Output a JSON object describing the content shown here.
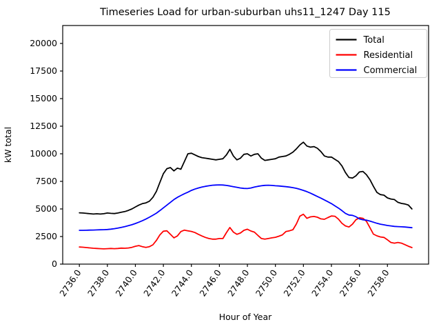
{
  "chart_data": {
    "type": "line",
    "title": "Timeseries Load for urban-suburban uhs11_1247  Day 115",
    "xlabel": "Hour of Year",
    "ylabel": "kW total",
    "x_start": 2736.0,
    "x_step": 0.25,
    "xlim": [
      2734.81,
      2760.94
    ],
    "ylim": [
      0,
      21625
    ],
    "xticks": [
      2736,
      2738,
      2740,
      2742,
      2744,
      2746,
      2748,
      2750,
      2752,
      2754,
      2756,
      2758
    ],
    "xtick_decimals": 1,
    "yticks": [
      0,
      2500,
      5000,
      7500,
      10000,
      12500,
      15000,
      17500,
      20000
    ],
    "grid": false,
    "legend_position": "upper right",
    "frame_color": "#000000",
    "legend_border_color": "#cccccc",
    "series": [
      {
        "name": "Total",
        "color": "#000000",
        "values": [
          4650,
          4630,
          4600,
          4570,
          4540,
          4560,
          4540,
          4570,
          4630,
          4600,
          4580,
          4630,
          4700,
          4760,
          4870,
          5000,
          5180,
          5350,
          5480,
          5550,
          5700,
          6050,
          6600,
          7400,
          8200,
          8650,
          8750,
          8450,
          8700,
          8600,
          9300,
          10000,
          10050,
          9900,
          9750,
          9650,
          9600,
          9550,
          9500,
          9450,
          9500,
          9550,
          9900,
          10400,
          9800,
          9450,
          9600,
          9950,
          10000,
          9800,
          9950,
          10000,
          9600,
          9400,
          9450,
          9500,
          9550,
          9700,
          9750,
          9800,
          9950,
          10150,
          10450,
          10800,
          11050,
          10700,
          10600,
          10650,
          10500,
          10200,
          9800,
          9700,
          9700,
          9500,
          9300,
          8900,
          8300,
          7850,
          7800,
          8000,
          8350,
          8400,
          8100,
          7650,
          7050,
          6500,
          6300,
          6250,
          6000,
          5900,
          5850,
          5600,
          5500,
          5450,
          5350,
          5000
        ]
      },
      {
        "name": "Residential",
        "color": "#ff0000",
        "values": [
          1550,
          1530,
          1500,
          1470,
          1440,
          1420,
          1400,
          1380,
          1400,
          1420,
          1400,
          1420,
          1450,
          1440,
          1460,
          1520,
          1620,
          1680,
          1580,
          1520,
          1580,
          1750,
          2150,
          2650,
          2980,
          3020,
          2700,
          2380,
          2550,
          2950,
          3080,
          3020,
          2960,
          2860,
          2700,
          2550,
          2420,
          2320,
          2260,
          2260,
          2320,
          2320,
          2850,
          3320,
          2900,
          2700,
          2820,
          3060,
          3160,
          3000,
          2900,
          2600,
          2320,
          2260,
          2320,
          2380,
          2430,
          2530,
          2650,
          2950,
          3020,
          3120,
          3650,
          4350,
          4520,
          4150,
          4280,
          4320,
          4250,
          4100,
          4060,
          4220,
          4360,
          4340,
          4080,
          3700,
          3460,
          3360,
          3620,
          4020,
          4200,
          4150,
          3880,
          3300,
          2720,
          2560,
          2460,
          2420,
          2200,
          1960,
          1900,
          1960,
          1900,
          1760,
          1620,
          1500
        ]
      },
      {
        "name": "Commercial",
        "color": "#0000ff",
        "values": [
          3060,
          3060,
          3070,
          3080,
          3090,
          3100,
          3110,
          3120,
          3140,
          3170,
          3210,
          3270,
          3330,
          3400,
          3480,
          3570,
          3680,
          3800,
          3930,
          4080,
          4250,
          4430,
          4620,
          4850,
          5100,
          5350,
          5600,
          5850,
          6050,
          6220,
          6380,
          6520,
          6680,
          6800,
          6900,
          6980,
          7050,
          7100,
          7150,
          7170,
          7180,
          7170,
          7130,
          7080,
          7020,
          6960,
          6900,
          6860,
          6850,
          6900,
          6980,
          7050,
          7100,
          7140,
          7150,
          7130,
          7100,
          7080,
          7050,
          7020,
          6980,
          6930,
          6870,
          6780,
          6680,
          6570,
          6430,
          6280,
          6130,
          5980,
          5820,
          5650,
          5480,
          5280,
          5080,
          4850,
          4600,
          4450,
          4420,
          4300,
          4100,
          4020,
          3980,
          3900,
          3800,
          3700,
          3620,
          3560,
          3500,
          3460,
          3420,
          3400,
          3380,
          3360,
          3330,
          3300
        ]
      }
    ]
  }
}
